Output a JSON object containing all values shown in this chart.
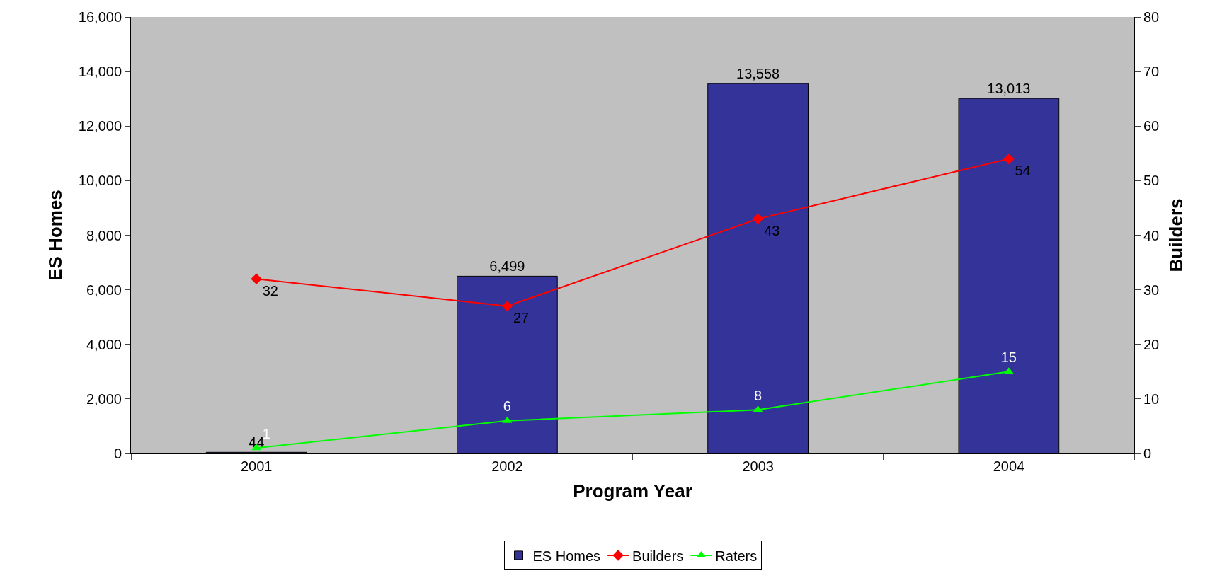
{
  "chart_data": {
    "type": "bar",
    "xlabel": "Program Year",
    "ylabel": "ES Homes",
    "y2label": "Builders",
    "categories": [
      "2001",
      "2002",
      "2003",
      "2004"
    ],
    "series": [
      {
        "name": "ES Homes",
        "color": "#333399",
        "values": [
          44,
          6499,
          13558,
          13013
        ],
        "value_labels": [
          "44",
          "6,499",
          "13,558",
          "13,013"
        ]
      },
      {
        "name": "Builders",
        "type": "line",
        "axis": "y2",
        "marker": "diamond",
        "color": "#ff0000",
        "values": [
          32,
          27,
          43,
          54
        ],
        "value_labels": [
          "32",
          "27",
          "43",
          "54"
        ]
      },
      {
        "name": "Raters",
        "type": "line",
        "axis": "y2",
        "marker": "triangle",
        "color": "#00ff00",
        "values": [
          1,
          6,
          8,
          15
        ],
        "value_labels": [
          "1",
          "6",
          "8",
          "15"
        ]
      }
    ],
    "ylim": [
      0,
      16000
    ],
    "yticks": [
      0,
      {
        "value": 2000,
        "label": "2,000"
      },
      {
        "value": 4000,
        "label": "4,000"
      },
      {
        "value": 6000,
        "label": "6,000"
      },
      {
        "value": 8000,
        "label": "8,000"
      },
      {
        "value": 10000,
        "label": "10,000"
      },
      {
        "value": 12000,
        "label": "12,000"
      },
      {
        "value": 14000,
        "label": "14,000"
      },
      {
        "value": 16000,
        "label": "16,000"
      }
    ],
    "y2lim": [
      0,
      80
    ],
    "y2ticks": [
      0,
      10,
      20,
      30,
      40,
      50,
      60,
      70,
      80
    ],
    "grid": false,
    "legend": "bottom"
  }
}
